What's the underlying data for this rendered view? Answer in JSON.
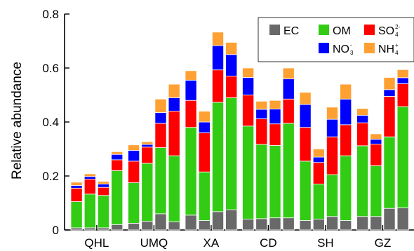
{
  "chart_data": {
    "type": "bar",
    "stacked": true,
    "ylabel": "Relative abundance",
    "ylim": [
      0,
      0.8
    ],
    "yticks": [
      "0",
      "0.2",
      "0.4",
      "0.6",
      "0.8"
    ],
    "groups": [
      "QHL",
      "UMQ",
      "XA",
      "CD",
      "SH",
      "GZ"
    ],
    "bars_per_group": 4,
    "legend_position": "top-right",
    "legend_layout": [
      [
        "EC",
        "OM",
        "SO4"
      ],
      [
        "NO3",
        "NH4"
      ]
    ],
    "series": [
      {
        "name": "EC",
        "label_main": "EC",
        "label_sup": "",
        "label_sub": "",
        "color": "#696969",
        "values": [
          0.008,
          0.008,
          0.008,
          0.02,
          0.025,
          0.032,
          0.06,
          0.03,
          0.055,
          0.035,
          0.068,
          0.075,
          0.04,
          0.042,
          0.045,
          0.045,
          0.035,
          0.04,
          0.05,
          0.035,
          0.05,
          0.05,
          0.08,
          0.082
        ]
      },
      {
        "name": "OM",
        "label_main": "OM",
        "label_sup": "",
        "label_sub": "",
        "color": "#33cc14",
        "values": [
          0.097,
          0.125,
          0.12,
          0.2,
          0.15,
          0.215,
          0.245,
          0.245,
          0.325,
          0.18,
          0.405,
          0.415,
          0.345,
          0.275,
          0.268,
          0.35,
          0.22,
          0.13,
          0.155,
          0.24,
          0.262,
          0.188,
          0.265,
          0.375
        ]
      },
      {
        "name": "SO4",
        "label_main": "SO",
        "label_sup": "2-",
        "label_sub": "4",
        "color": "#ff0000",
        "values": [
          0.05,
          0.055,
          0.03,
          0.04,
          0.08,
          0.06,
          0.09,
          0.165,
          0.1,
          0.145,
          0.12,
          0.08,
          0.115,
          0.095,
          0.08,
          0.09,
          0.125,
          0.08,
          0.14,
          0.115,
          0.085,
          0.08,
          0.15,
          0.085
        ]
      },
      {
        "name": "NO3",
        "label_main": "NO",
        "label_sup": "-",
        "label_sub": "3",
        "color": "#0000ff",
        "values": [
          0.01,
          0.01,
          0.012,
          0.02,
          0.04,
          0.01,
          0.04,
          0.05,
          0.075,
          0.04,
          0.09,
          0.08,
          0.065,
          0.035,
          0.055,
          0.075,
          0.085,
          0.02,
          0.065,
          0.095,
          0.028,
          0.018,
          0.025,
          0.022
        ]
      },
      {
        "name": "NH4",
        "label_main": "NH",
        "label_sup": "+",
        "label_sub": "4",
        "color": "#ffa033",
        "values": [
          0.012,
          0.01,
          0.01,
          0.01,
          0.02,
          0.01,
          0.05,
          0.05,
          0.035,
          0.04,
          0.05,
          0.045,
          0.035,
          0.03,
          0.032,
          0.04,
          0.045,
          0.03,
          0.045,
          0.055,
          0.025,
          0.02,
          0.045,
          0.03
        ]
      }
    ]
  }
}
